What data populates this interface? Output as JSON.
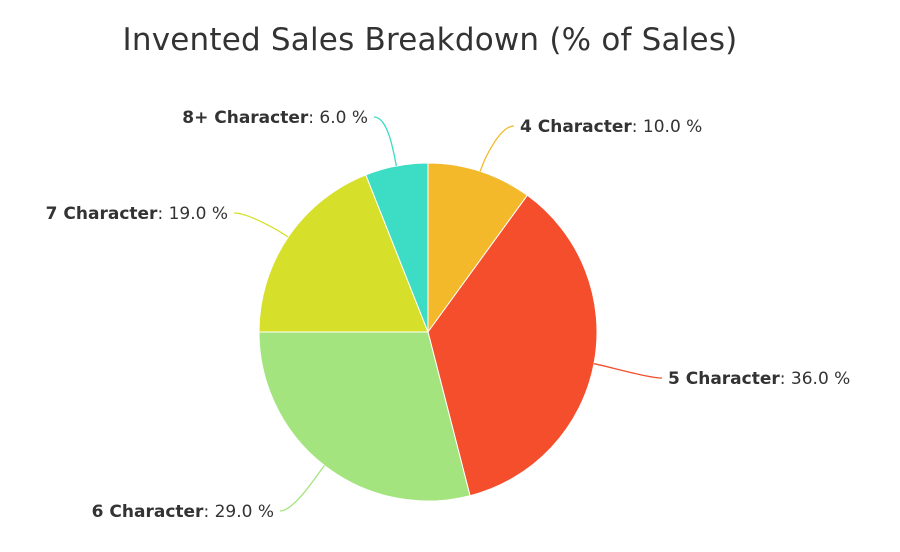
{
  "chart_data": {
    "type": "pie",
    "title": "Invented Sales Breakdown (% of Sales)",
    "value_suffix": " %",
    "slices": [
      {
        "label": "4 Character",
        "value": 10.0,
        "value_text": "10.0",
        "color": "#F4B92A"
      },
      {
        "label": "5 Character",
        "value": 36.0,
        "value_text": "36.0",
        "color": "#F44E2C"
      },
      {
        "label": "6 Character",
        "value": 29.0,
        "value_text": "29.0",
        "color": "#A3E47E"
      },
      {
        "label": "7 Character",
        "value": 19.0,
        "value_text": "19.0",
        "color": "#D6E02A"
      },
      {
        "label": "8+ Character",
        "value": 6.0,
        "value_text": "6.0",
        "color": "#3DDCC4"
      }
    ]
  }
}
